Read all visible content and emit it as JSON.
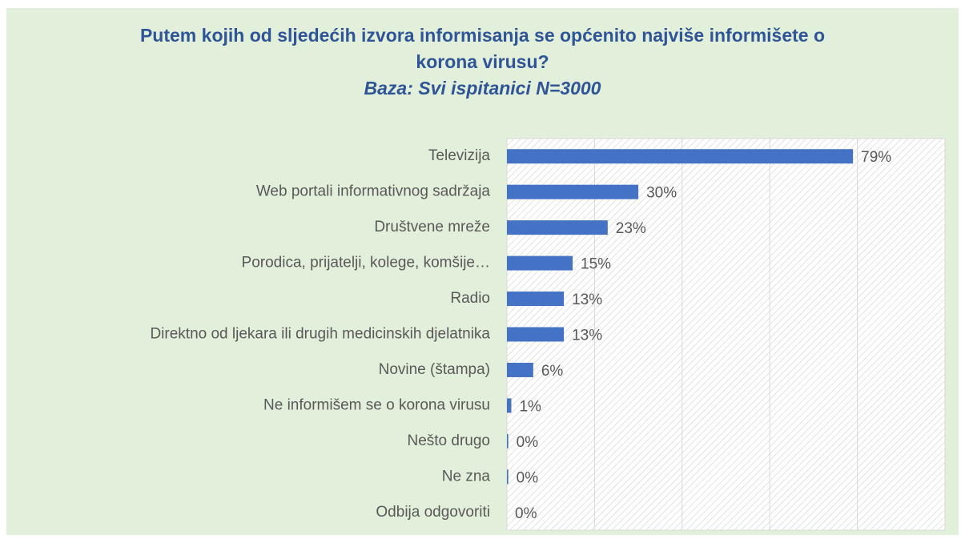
{
  "chart_data": {
    "type": "hbar",
    "title": "Putem kojih od sljedećih izvora informisanja se općenito najviše informišete o korona virusu?",
    "subtitle": "Baza: Svi ispitanici N=3000",
    "categories": [
      "Televizija",
      "Web portali informativnog sadržaja",
      "Društvene mreže",
      "Porodica, prijatelji, kolege, komšije…",
      "Radio",
      "Direktno od ljekara ili drugih medicinskih djelatnika",
      "Novine (štampa)",
      "Ne informišem se o korona virusu",
      "Nešto drugo",
      "Ne zna",
      "Odbija odgovoriti"
    ],
    "values": [
      79,
      30,
      23,
      15,
      13,
      13,
      6,
      1,
      0.3,
      0.3,
      0
    ],
    "value_labels": [
      "79%",
      "30%",
      "23%",
      "15%",
      "13%",
      "13%",
      "6%",
      "1%",
      "0%",
      "0%",
      "0%"
    ],
    "color": "#4472c4",
    "xlim": [
      0,
      100
    ],
    "xticks": [
      0,
      20,
      40,
      60,
      80,
      100
    ],
    "grid": true
  }
}
